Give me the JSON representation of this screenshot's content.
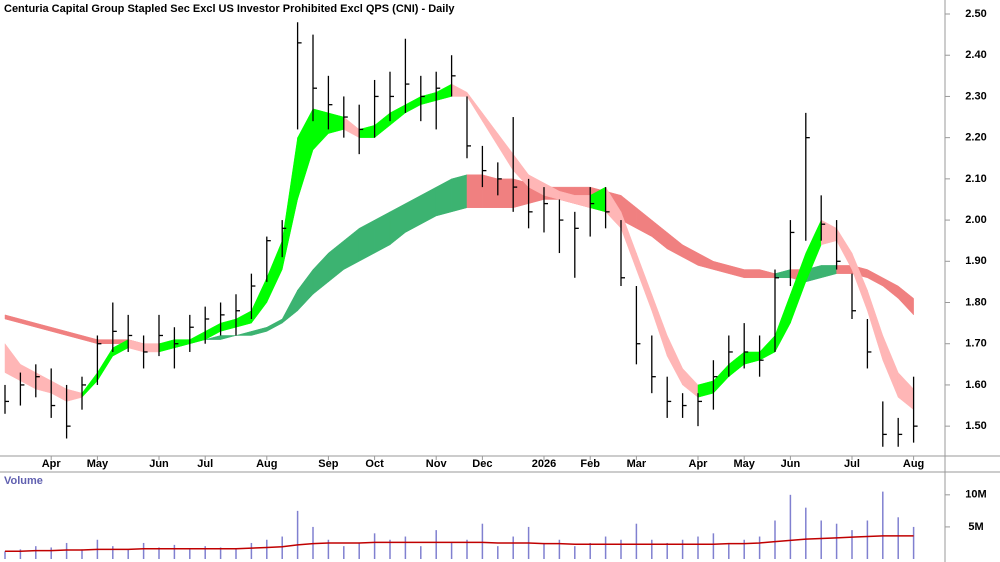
{
  "chart_data": [
    {
      "type": "ohlc",
      "title": "Centuria Capital Group Stapled Sec Excl US Investor Prohibited Excl QPS (CNI) - Daily",
      "categories": [
        null,
        null,
        null,
        "Apr",
        null,
        null,
        "May",
        null,
        null,
        null,
        "Jun",
        null,
        null,
        "Jul",
        null,
        null,
        null,
        "Aug",
        null,
        null,
        null,
        "Sep",
        null,
        null,
        "Oct",
        null,
        null,
        null,
        "Nov",
        null,
        null,
        "Dec",
        null,
        null,
        null,
        "2026",
        null,
        null,
        "Feb",
        null,
        null,
        "Mar",
        null,
        null,
        null,
        "Apr",
        null,
        null,
        "May",
        null,
        null,
        "Jun",
        null,
        null,
        null,
        "Jul",
        null,
        null,
        null,
        "Aug"
      ],
      "high": [
        1.6,
        1.63,
        1.65,
        1.64,
        1.6,
        1.62,
        1.72,
        1.8,
        1.77,
        1.72,
        1.77,
        1.74,
        1.77,
        1.79,
        1.8,
        1.82,
        1.87,
        1.96,
        2.0,
        2.48,
        2.45,
        2.35,
        2.3,
        2.28,
        2.34,
        2.36,
        2.44,
        2.35,
        2.36,
        2.4,
        2.3,
        2.18,
        2.14,
        2.25,
        2.1,
        2.08,
        2.05,
        2.02,
        2.08,
        2.08,
        2.0,
        1.84,
        1.72,
        1.62,
        1.58,
        1.58,
        1.66,
        1.72,
        1.75,
        1.72,
        1.88,
        2.0,
        2.26,
        2.06,
        2.0,
        1.87,
        1.76,
        1.56,
        1.52,
        1.62
      ],
      "low": [
        1.53,
        1.55,
        1.57,
        1.52,
        1.47,
        1.54,
        1.6,
        1.68,
        1.68,
        1.64,
        1.67,
        1.64,
        1.68,
        1.7,
        1.72,
        1.72,
        1.76,
        1.85,
        1.91,
        2.22,
        2.24,
        2.22,
        2.2,
        2.16,
        2.2,
        2.24,
        2.26,
        2.24,
        2.22,
        2.3,
        2.15,
        2.08,
        2.06,
        2.02,
        1.98,
        1.97,
        1.92,
        1.86,
        1.96,
        1.98,
        1.84,
        1.65,
        1.58,
        1.52,
        1.52,
        1.5,
        1.54,
        1.62,
        1.64,
        1.62,
        1.68,
        1.84,
        1.95,
        1.95,
        1.88,
        1.76,
        1.64,
        1.45,
        1.45,
        1.46
      ],
      "close": [
        1.56,
        1.6,
        1.62,
        1.55,
        1.5,
        1.6,
        1.7,
        1.73,
        1.72,
        1.68,
        1.72,
        1.7,
        1.74,
        1.76,
        1.77,
        1.78,
        1.84,
        1.95,
        1.98,
        2.43,
        2.32,
        2.28,
        2.25,
        2.22,
        2.3,
        2.3,
        2.33,
        2.3,
        2.32,
        2.35,
        2.18,
        2.12,
        2.1,
        2.08,
        2.02,
        2.04,
        2.0,
        1.98,
        2.04,
        2.02,
        1.86,
        1.7,
        1.62,
        1.56,
        1.55,
        1.56,
        1.62,
        1.68,
        1.68,
        1.66,
        1.86,
        1.97,
        2.2,
        1.99,
        1.9,
        1.78,
        1.68,
        1.48,
        1.48,
        1.5
      ],
      "color": "#000000",
      "bands": [
        {
          "upper": [
            1.77,
            1.76,
            1.75,
            1.74,
            1.73,
            1.72,
            1.71,
            1.71,
            1.71,
            1.7,
            1.7,
            1.7,
            1.71,
            1.71,
            1.72,
            1.72,
            1.73,
            1.74,
            1.76,
            1.83,
            1.88,
            1.92,
            1.95,
            1.98,
            2.0,
            2.02,
            2.04,
            2.06,
            2.08,
            2.1,
            2.11,
            2.11,
            2.1,
            2.1,
            2.09,
            2.08,
            2.08,
            2.08,
            2.08,
            2.07,
            2.06,
            2.03,
            2.0,
            1.97,
            1.94,
            1.92,
            1.9,
            1.89,
            1.88,
            1.88,
            1.87,
            1.88,
            1.88,
            1.89,
            1.89,
            1.89,
            1.88,
            1.86,
            1.84,
            1.81
          ],
          "lower": [
            1.76,
            1.75,
            1.74,
            1.73,
            1.72,
            1.71,
            1.7,
            1.7,
            1.7,
            1.7,
            1.7,
            1.69,
            1.7,
            1.71,
            1.71,
            1.72,
            1.72,
            1.73,
            1.75,
            1.78,
            1.82,
            1.85,
            1.88,
            1.9,
            1.92,
            1.94,
            1.97,
            1.99,
            2.01,
            2.02,
            2.03,
            2.03,
            2.03,
            2.03,
            2.04,
            2.05,
            2.05,
            2.04,
            2.03,
            2.02,
            2.0,
            1.98,
            1.96,
            1.93,
            1.91,
            1.89,
            1.88,
            1.87,
            1.86,
            1.86,
            1.86,
            1.86,
            1.85,
            1.86,
            1.87,
            1.87,
            1.86,
            1.84,
            1.81,
            1.77
          ],
          "up_color": "#3cb371",
          "down_color": "#f08080"
        },
        {
          "upper": [
            1.7,
            1.65,
            1.63,
            1.61,
            1.59,
            1.58,
            1.63,
            1.69,
            1.71,
            1.7,
            1.7,
            1.71,
            1.71,
            1.73,
            1.75,
            1.76,
            1.78,
            1.86,
            1.95,
            2.2,
            2.27,
            2.26,
            2.25,
            2.22,
            2.23,
            2.26,
            2.28,
            2.3,
            2.31,
            2.33,
            2.31,
            2.26,
            2.21,
            2.16,
            2.11,
            2.09,
            2.07,
            2.06,
            2.06,
            2.08,
            2.02,
            1.92,
            1.82,
            1.72,
            1.64,
            1.6,
            1.61,
            1.65,
            1.68,
            1.68,
            1.72,
            1.82,
            1.92,
            2.0,
            1.98,
            1.92,
            1.83,
            1.72,
            1.63,
            1.59
          ],
          "lower": [
            1.63,
            1.61,
            1.59,
            1.58,
            1.56,
            1.57,
            1.61,
            1.67,
            1.69,
            1.68,
            1.68,
            1.69,
            1.7,
            1.71,
            1.73,
            1.74,
            1.75,
            1.8,
            1.88,
            2.05,
            2.17,
            2.21,
            2.22,
            2.2,
            2.2,
            2.23,
            2.26,
            2.28,
            2.29,
            2.3,
            2.3,
            2.24,
            2.18,
            2.12,
            2.08,
            2.06,
            2.05,
            2.04,
            2.03,
            2.02,
            1.98,
            1.88,
            1.78,
            1.67,
            1.6,
            1.57,
            1.58,
            1.62,
            1.65,
            1.66,
            1.68,
            1.75,
            1.85,
            1.94,
            1.95,
            1.88,
            1.78,
            1.66,
            1.57,
            1.54
          ],
          "up_color": "#00ff00",
          "down_color": "#ffb6b6"
        }
      ],
      "ylim": [
        1.43,
        2.534
      ],
      "yticks": [
        {
          "value": 1.5,
          "label": "1.50"
        },
        {
          "value": 1.6,
          "label": "1.60"
        },
        {
          "value": 1.7,
          "label": "1.70"
        },
        {
          "value": 1.8,
          "label": "1.80"
        },
        {
          "value": 1.9,
          "label": "1.90"
        },
        {
          "value": 2.0,
          "label": "2.00"
        },
        {
          "value": 2.1,
          "label": "2.10"
        },
        {
          "value": 2.2,
          "label": "2.20"
        },
        {
          "value": 2.3,
          "label": "2.30"
        },
        {
          "value": 2.4,
          "label": "2.40"
        },
        {
          "value": 2.5,
          "label": "2.50"
        }
      ]
    },
    {
      "type": "bar",
      "title": "Volume",
      "values": [
        1.2,
        1.5,
        2.0,
        1.8,
        2.5,
        1.5,
        3.0,
        2.0,
        1.5,
        2.5,
        1.8,
        2.2,
        1.5,
        2.0,
        1.8,
        1.5,
        2.5,
        3.0,
        3.5,
        7.5,
        5.0,
        3.0,
        2.0,
        2.5,
        4.0,
        3.0,
        3.5,
        2.0,
        4.5,
        2.5,
        3.0,
        5.5,
        2.0,
        3.5,
        5.0,
        2.5,
        3.0,
        2.0,
        2.5,
        3.5,
        3.0,
        5.5,
        3.0,
        2.5,
        3.0,
        3.5,
        4.0,
        2.5,
        3.0,
        3.5,
        6.0,
        10.0,
        8.0,
        6.0,
        5.5,
        4.5,
        6.0,
        10.5,
        6.5,
        5.0
      ],
      "color": "#8080d0",
      "average": {
        "values": [
          1.2,
          1.2,
          1.3,
          1.3,
          1.4,
          1.4,
          1.5,
          1.5,
          1.5,
          1.6,
          1.6,
          1.6,
          1.6,
          1.6,
          1.6,
          1.6,
          1.7,
          1.8,
          1.9,
          2.2,
          2.4,
          2.5,
          2.5,
          2.5,
          2.6,
          2.6,
          2.6,
          2.6,
          2.6,
          2.6,
          2.6,
          2.6,
          2.5,
          2.5,
          2.5,
          2.4,
          2.4,
          2.3,
          2.3,
          2.3,
          2.3,
          2.3,
          2.3,
          2.3,
          2.3,
          2.3,
          2.3,
          2.4,
          2.4,
          2.5,
          2.7,
          2.9,
          3.1,
          3.2,
          3.3,
          3.4,
          3.5,
          3.6,
          3.6,
          3.6
        ],
        "color": "#c00000"
      },
      "ylim": [
        0,
        13.4
      ],
      "yticks": [
        {
          "value": 5,
          "label": "5M"
        },
        {
          "value": 10,
          "label": "10M"
        }
      ]
    }
  ]
}
